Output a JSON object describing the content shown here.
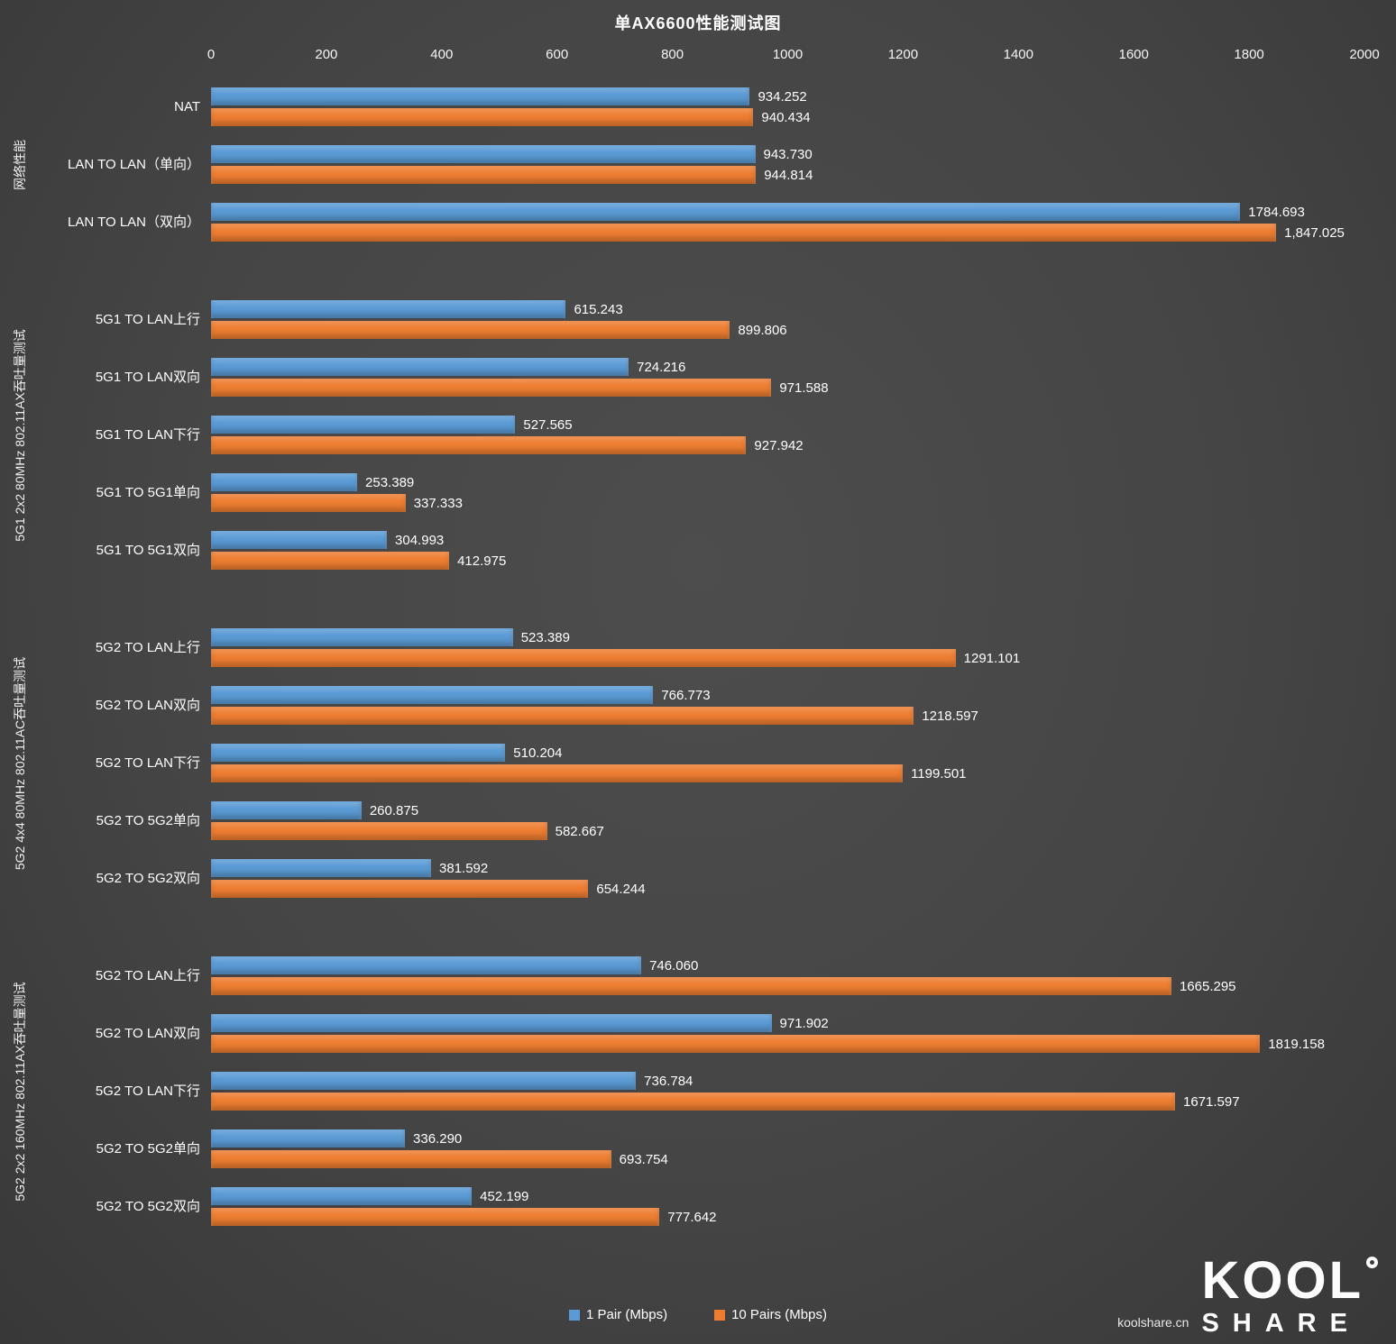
{
  "title": "单AX6600性能测试图",
  "chart_data": {
    "type": "bar",
    "orientation": "horizontal",
    "xlim": [
      0,
      2000
    ],
    "x_ticks": [
      0,
      200,
      400,
      600,
      800,
      1000,
      1200,
      1400,
      1600,
      1800,
      2000
    ],
    "grid": false,
    "legend_position": "bottom",
    "series": [
      {
        "key": "pair1",
        "name": "1 Pair (Mbps)",
        "color": "#5B9BD5"
      },
      {
        "key": "pairs10",
        "name": "10  Pairs  (Mbps)",
        "color": "#ED7D31"
      }
    ],
    "groups": [
      {
        "label": "网络性能",
        "rows": [
          {
            "category": "NAT",
            "values": [
              934.252,
              940.434
            ],
            "labels": [
              "934.252",
              "940.434"
            ]
          },
          {
            "category": "LAN TO LAN（单向）",
            "values": [
              943.73,
              944.814
            ],
            "labels": [
              "943.730",
              "944.814"
            ]
          },
          {
            "category": "LAN TO LAN（双向）",
            "values": [
              1784.693,
              1847.025
            ],
            "labels": [
              "1784.693",
              "1,847.025"
            ]
          }
        ]
      },
      {
        "label": "5G1 2x2 80MHz 802.11AX吞吐量测试",
        "rows": [
          {
            "category": "5G1 TO LAN上行",
            "values": [
              615.243,
              899.806
            ],
            "labels": [
              "615.243",
              "899.806"
            ]
          },
          {
            "category": "5G1 TO LAN双向",
            "values": [
              724.216,
              971.588
            ],
            "labels": [
              "724.216",
              "971.588"
            ]
          },
          {
            "category": "5G1 TO LAN下行",
            "values": [
              527.565,
              927.942
            ],
            "labels": [
              "527.565",
              "927.942"
            ]
          },
          {
            "category": "5G1 TO 5G1单向",
            "values": [
              253.389,
              337.333
            ],
            "labels": [
              "253.389",
              "337.333"
            ]
          },
          {
            "category": "5G1 TO 5G1双向",
            "values": [
              304.993,
              412.975
            ],
            "labels": [
              "304.993",
              "412.975"
            ]
          }
        ]
      },
      {
        "label": "5G2 4x4 80MHz 802.11AC吞吐量测试",
        "rows": [
          {
            "category": "5G2 TO LAN上行",
            "values": [
              523.389,
              1291.101
            ],
            "labels": [
              "523.389",
              "1291.101"
            ]
          },
          {
            "category": "5G2 TO LAN双向",
            "values": [
              766.773,
              1218.597
            ],
            "labels": [
              "766.773",
              "1218.597"
            ]
          },
          {
            "category": "5G2 TO LAN下行",
            "values": [
              510.204,
              1199.501
            ],
            "labels": [
              "510.204",
              "1199.501"
            ]
          },
          {
            "category": "5G2 TO 5G2单向",
            "values": [
              260.875,
              582.667
            ],
            "labels": [
              "260.875",
              "582.667"
            ]
          },
          {
            "category": "5G2 TO 5G2双向",
            "values": [
              381.592,
              654.244
            ],
            "labels": [
              "381.592",
              "654.244"
            ]
          }
        ]
      },
      {
        "label": "5G2 2x2 160MHz 802.11AX吞吐量测试",
        "rows": [
          {
            "category": "5G2 TO LAN上行",
            "values": [
              746.06,
              1665.295
            ],
            "labels": [
              "746.060",
              "1665.295"
            ]
          },
          {
            "category": "5G2 TO LAN双向",
            "values": [
              971.902,
              1819.158
            ],
            "labels": [
              "971.902",
              "1819.158"
            ]
          },
          {
            "category": "5G2 TO LAN下行",
            "values": [
              736.784,
              1671.597
            ],
            "labels": [
              "736.784",
              "1671.597"
            ]
          },
          {
            "category": "5G2 TO 5G2单向",
            "values": [
              336.29,
              693.754
            ],
            "labels": [
              "336.290",
              "693.754"
            ]
          },
          {
            "category": "5G2 TO 5G2双向",
            "values": [
              452.199,
              777.642
            ],
            "labels": [
              "452.199",
              "777.642"
            ]
          }
        ]
      }
    ]
  },
  "footer": {
    "logo_kool": "KOOL",
    "logo_share": "SHARE",
    "site": "koolshare.cn"
  }
}
